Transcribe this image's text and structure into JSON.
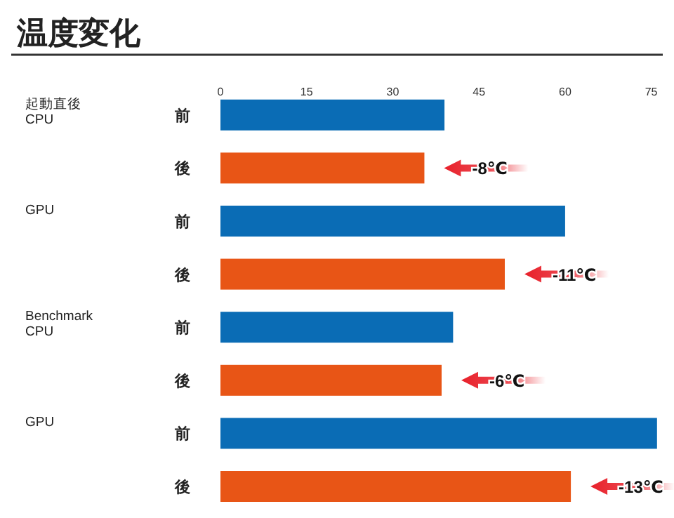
{
  "chart_data": {
    "type": "bar",
    "orientation": "horizontal",
    "title": "温度変化",
    "categories": [
      "前",
      "後",
      "前",
      "後",
      "前",
      "後",
      "前",
      "後"
    ],
    "values": [
      39,
      35.5,
      60,
      49.5,
      40.5,
      38.5,
      76,
      61
    ],
    "colors": [
      "#0a6cb5",
      "#e85516",
      "#0a6cb5",
      "#e85516",
      "#0a6cb5",
      "#e85516",
      "#0a6cb5",
      "#e85516"
    ],
    "xlim": [
      0,
      77
    ],
    "xticks": [
      0,
      15,
      30,
      45,
      60,
      75
    ],
    "annotations": [
      "起動直後\nCPU",
      "GPU",
      "Benchmark\nCPU",
      "GPU",
      "-8℃",
      "-11℃",
      "-6℃",
      "-13℃"
    ]
  }
}
